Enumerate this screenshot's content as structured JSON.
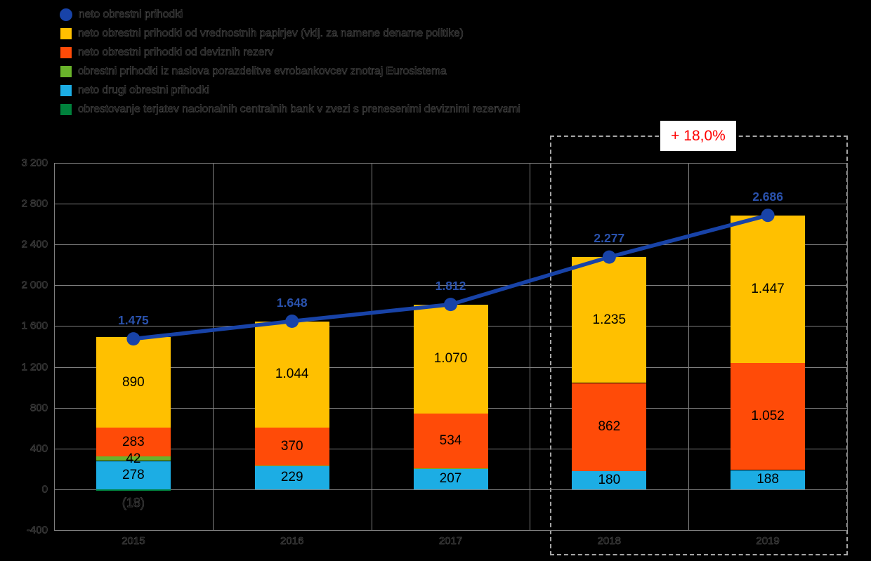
{
  "legend": {
    "items": [
      {
        "marker": "circle-marker",
        "color": "#1843A8",
        "label": "neto obrestni prihodki"
      },
      {
        "marker": "square-swatch",
        "color": "#FFC000",
        "label": "neto obrestni prihodki od vrednostnih papirjev (vklj. za namene denarne politike)"
      },
      {
        "marker": "square-swatch",
        "color": "#FF4B08",
        "label": "neto obrestni prihodki od deviznih rezerv"
      },
      {
        "marker": "square-swatch",
        "color": "#69B32B",
        "label": "obrestni prihodki iz naslova porazdelitve evrobankovcev znotraj Eurosistema"
      },
      {
        "marker": "square-swatch",
        "color": "#1CADE4",
        "label": "neto drugi obrestni prihodki"
      },
      {
        "marker": "square-swatch",
        "color": "#00813C",
        "label": "obrestovanje terjatev nacionalnih centralnih bank v zvezi s prenesenimi deviznimi rezervami"
      }
    ]
  },
  "growth_badge": {
    "text": "+ 18,0%",
    "text_color": "#FF0000"
  },
  "highlight_box": {
    "years": [
      "2018",
      "2019"
    ],
    "style": "dashed",
    "color": "#A6A6A6"
  },
  "chart_data": {
    "type": "bar",
    "subtype": "stacked-bars-with-line-overlay",
    "title": "",
    "xlabel": "",
    "ylabel": "",
    "categories": [
      "2015",
      "2016",
      "2017",
      "2018",
      "2019"
    ],
    "y_axis": {
      "min": -400,
      "max": 3200,
      "step": 400,
      "tick_labels": [
        "3 200",
        "2 800",
        "2 400",
        "2 000",
        "1 600",
        "1 200",
        "800",
        "400",
        "0",
        "-400"
      ]
    },
    "grid": true,
    "legend_position": "top-left",
    "series": [
      {
        "name": "neto drugi obrestni prihodki",
        "color": "#1CADE4",
        "values": [
          278,
          229,
          207,
          180,
          188
        ],
        "value_labels": [
          "278",
          "229",
          "207",
          "180",
          "188"
        ]
      },
      {
        "name": "obrestni prihodki iz naslova porazdelitve evrobankovcev znotraj Eurosistema",
        "color": "#69B32B",
        "values": [
          42,
          5,
          1,
          0,
          0
        ],
        "value_labels": [
          "42",
          "",
          "",
          "",
          ""
        ]
      },
      {
        "name": "neto obrestni prihodki od deviznih rezerv",
        "color": "#FF4B08",
        "values": [
          283,
          370,
          534,
          862,
          1052
        ],
        "value_labels": [
          "283",
          "370",
          "534",
          "862",
          "1.052"
        ]
      },
      {
        "name": "neto obrestni prihodki od vrednostnih papirjev (vklj. za namene denarne politike)",
        "color": "#FFC000",
        "values": [
          890,
          1044,
          1070,
          1235,
          1447
        ],
        "value_labels": [
          "890",
          "1.044",
          "1.070",
          "1.235",
          "1.447"
        ]
      },
      {
        "name": "obrestovanje terjatev nacionalnih centralnih bank v zvezi s prenesenimi deviznimi rezervami",
        "color": "#00813C",
        "values": [
          -18,
          0,
          0,
          0,
          0
        ],
        "value_labels": [
          "(18)",
          "",
          "",
          "",
          ""
        ]
      }
    ],
    "line_series": {
      "name": "neto obrestni prihodki",
      "color": "#1843A8",
      "label_color": "#2A52AD",
      "values": [
        1475,
        1648,
        1812,
        2277,
        2686
      ],
      "value_labels": [
        "1.475",
        "1.648",
        "1.812",
        "2.277",
        "2.686"
      ]
    }
  }
}
